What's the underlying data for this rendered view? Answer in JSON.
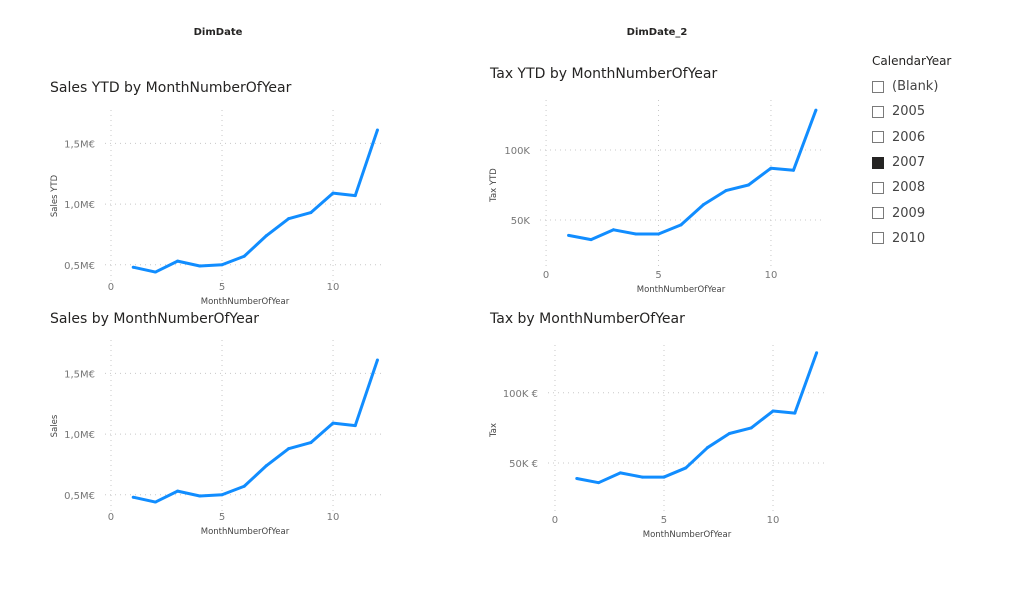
{
  "headers": {
    "left": "DimDate",
    "right": "DimDate_2"
  },
  "slicer": {
    "title": "CalendarYear",
    "options": [
      {
        "label": "(Blank)",
        "checked": false
      },
      {
        "label": "2005",
        "checked": false
      },
      {
        "label": "2006",
        "checked": false
      },
      {
        "label": "2007",
        "checked": true
      },
      {
        "label": "2008",
        "checked": false
      },
      {
        "label": "2009",
        "checked": false
      },
      {
        "label": "2010",
        "checked": false
      }
    ]
  },
  "colors": {
    "line": "#118DFF",
    "grid": "#c8c8c8",
    "tick": "#777777"
  },
  "chart_data": [
    {
      "type": "line",
      "title": "Sales YTD by MonthNumberOfYear",
      "xlabel": "MonthNumberOfYear",
      "ylabel": "Sales YTD",
      "x": [
        1,
        2,
        3,
        4,
        5,
        6,
        7,
        8,
        9,
        10,
        11,
        12
      ],
      "values": [
        480000,
        440000,
        530000,
        490000,
        500000,
        570000,
        740000,
        880000,
        930000,
        1090000,
        1070000,
        1610000
      ],
      "xticks": [
        0,
        5,
        10
      ],
      "xtick_labels": [
        "0",
        "5",
        "10"
      ],
      "yticks": [
        500000,
        1000000,
        1500000
      ],
      "ytick_labels": [
        "0,5M€",
        "1,0M€",
        "1,5M€"
      ],
      "xlim": [
        -0.27,
        12.34
      ],
      "ylim": [
        358000,
        1775000
      ],
      "grid": true
    },
    {
      "type": "line",
      "title": "Tax YTD by MonthNumberOfYear",
      "xlabel": "MonthNumberOfYear",
      "ylabel": "Tax YTD",
      "x": [
        1,
        2,
        3,
        4,
        5,
        6,
        7,
        8,
        9,
        10,
        11,
        12
      ],
      "values": [
        39000,
        36000,
        43000,
        40000,
        40000,
        46500,
        61000,
        71000,
        75000,
        87000,
        85500,
        128500
      ],
      "xticks": [
        0,
        5,
        10
      ],
      "xtick_labels": [
        "0",
        "5",
        "10"
      ],
      "yticks": [
        50000,
        100000
      ],
      "ytick_labels": [
        "50K",
        "100K"
      ],
      "xlim": [
        -0.27,
        12.27
      ],
      "ylim": [
        14300,
        135700
      ],
      "grid": true
    },
    {
      "type": "line",
      "title": "Sales by MonthNumberOfYear",
      "xlabel": "MonthNumberOfYear",
      "ylabel": "Sales",
      "x": [
        1,
        2,
        3,
        4,
        5,
        6,
        7,
        8,
        9,
        10,
        11,
        12
      ],
      "values": [
        480000,
        440000,
        530000,
        490000,
        500000,
        570000,
        740000,
        880000,
        930000,
        1090000,
        1070000,
        1610000
      ],
      "xticks": [
        0,
        5,
        10
      ],
      "xtick_labels": [
        "0",
        "5",
        "10"
      ],
      "yticks": [
        500000,
        1000000,
        1500000
      ],
      "ytick_labels": [
        "0,5M€",
        "1,0M€",
        "1,5M€"
      ],
      "xlim": [
        -0.27,
        12.34
      ],
      "ylim": [
        358000,
        1775000
      ],
      "grid": true
    },
    {
      "type": "line",
      "title": "Tax by MonthNumberOfYear",
      "xlabel": "MonthNumberOfYear",
      "ylabel": "Tax",
      "x": [
        1,
        2,
        3,
        4,
        5,
        6,
        7,
        8,
        9,
        10,
        11,
        12
      ],
      "values": [
        39000,
        36000,
        43000,
        40000,
        40000,
        46500,
        61000,
        71000,
        75000,
        87000,
        85500,
        128500
      ],
      "xticks": [
        0,
        5,
        10
      ],
      "xtick_labels": [
        "0",
        "5",
        "10"
      ],
      "yticks": [
        50000,
        100000
      ],
      "ytick_labels": [
        "50K €",
        "100K €"
      ],
      "xlim": [
        -0.32,
        12.43
      ],
      "ylim": [
        13000,
        134000
      ],
      "grid": true
    }
  ]
}
